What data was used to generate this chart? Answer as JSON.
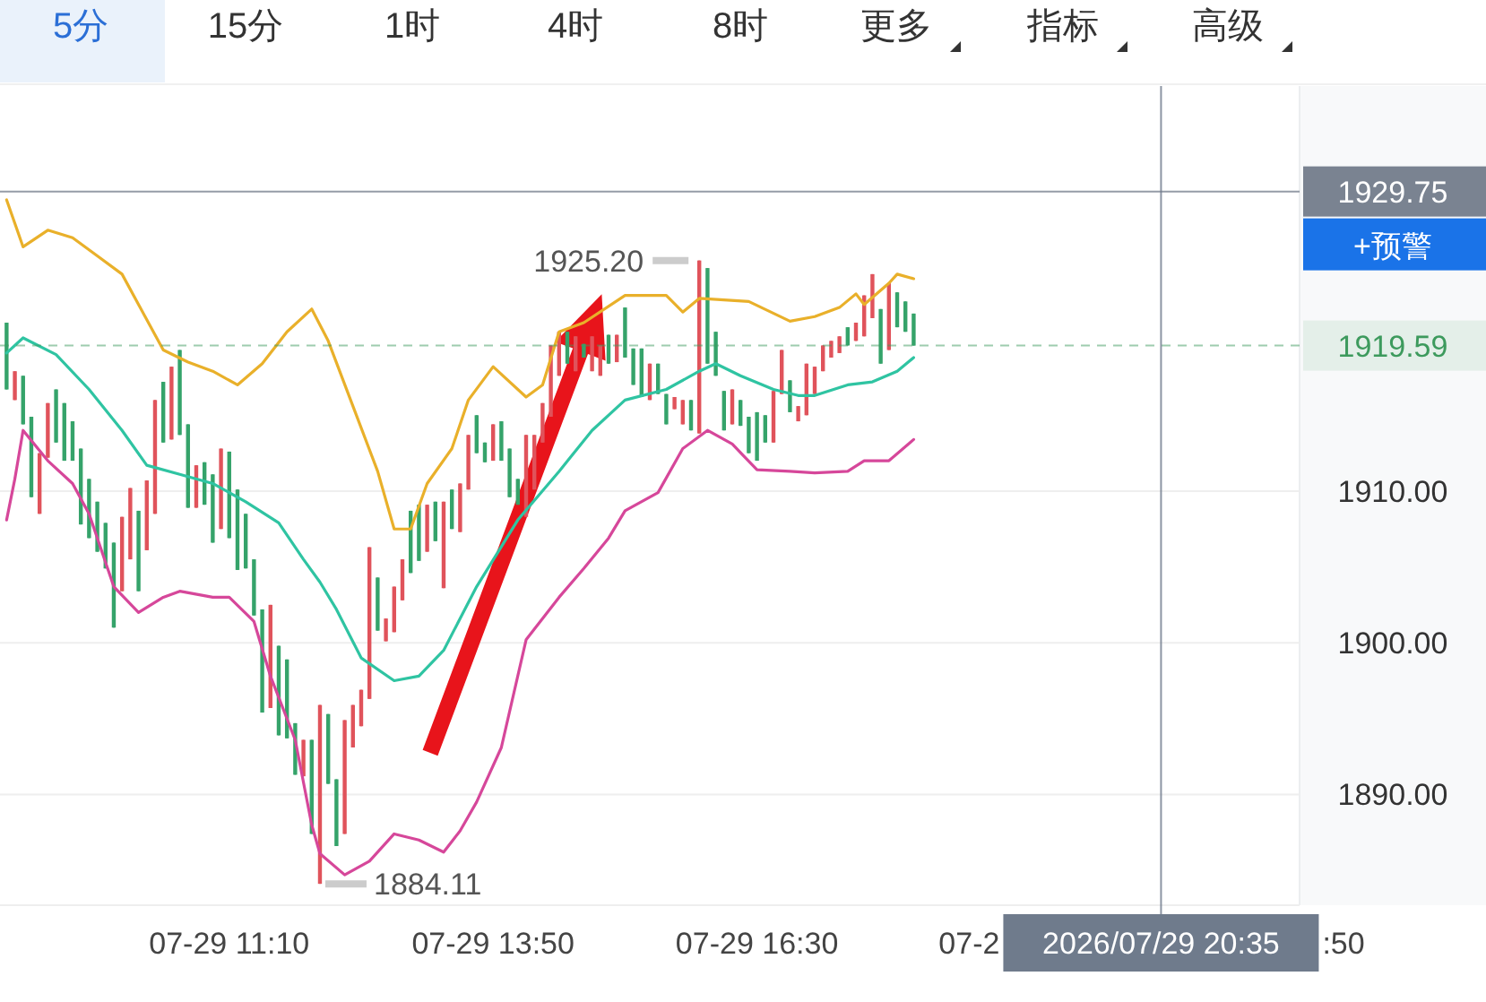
{
  "chart_data": {
    "type": "candlestick",
    "x": [
      "2026-07-29T08:55",
      "2026-07-29T09:00",
      "2026-07-29T09:05",
      "2026-07-29T09:10",
      "2026-07-29T09:15",
      "2026-07-29T09:20",
      "2026-07-29T09:25",
      "2026-07-29T09:30",
      "2026-07-29T09:35",
      "2026-07-29T09:40",
      "2026-07-29T09:45",
      "2026-07-29T09:50",
      "2026-07-29T09:55",
      "2026-07-29T10:00",
      "2026-07-29T10:05",
      "2026-07-29T10:10",
      "2026-07-29T10:15",
      "2026-07-29T10:20",
      "2026-07-29T10:25",
      "2026-07-29T10:30",
      "2026-07-29T10:35",
      "2026-07-29T10:40",
      "2026-07-29T10:45",
      "2026-07-29T10:50",
      "2026-07-29T10:55",
      "2026-07-29T11:00",
      "2026-07-29T11:05",
      "2026-07-29T11:10",
      "2026-07-29T11:15",
      "2026-07-29T11:20",
      "2026-07-29T11:25",
      "2026-07-29T11:30",
      "2026-07-29T11:35",
      "2026-07-29T11:40",
      "2026-07-29T11:45",
      "2026-07-29T11:50",
      "2026-07-29T11:55",
      "2026-07-29T12:00",
      "2026-07-29T12:05",
      "2026-07-29T12:10",
      "2026-07-29T12:15",
      "2026-07-29T12:20",
      "2026-07-29T12:25",
      "2026-07-29T12:30",
      "2026-07-29T12:35",
      "2026-07-29T12:40",
      "2026-07-29T12:45",
      "2026-07-29T12:50",
      "2026-07-29T12:55",
      "2026-07-29T13:00",
      "2026-07-29T13:05",
      "2026-07-29T13:10",
      "2026-07-29T13:15",
      "2026-07-29T13:20",
      "2026-07-29T13:25",
      "2026-07-29T13:30",
      "2026-07-29T13:35",
      "2026-07-29T13:40",
      "2026-07-29T13:45",
      "2026-07-29T13:50",
      "2026-07-29T13:55",
      "2026-07-29T14:00",
      "2026-07-29T14:05",
      "2026-07-29T14:10",
      "2026-07-29T14:15",
      "2026-07-29T14:20",
      "2026-07-29T14:25",
      "2026-07-29T14:30",
      "2026-07-29T14:35",
      "2026-07-29T14:40",
      "2026-07-29T14:45",
      "2026-07-29T14:50",
      "2026-07-29T14:55",
      "2026-07-29T15:00",
      "2026-07-29T15:05",
      "2026-07-29T15:10",
      "2026-07-29T15:15",
      "2026-07-29T15:20",
      "2026-07-29T15:25",
      "2026-07-29T15:30",
      "2026-07-29T15:35",
      "2026-07-29T15:40",
      "2026-07-29T15:45",
      "2026-07-29T15:50",
      "2026-07-29T15:55",
      "2026-07-29T16:00",
      "2026-07-29T16:05",
      "2026-07-29T16:10",
      "2026-07-29T16:15",
      "2026-07-29T16:20",
      "2026-07-29T16:25",
      "2026-07-29T16:30",
      "2026-07-29T16:35",
      "2026-07-29T16:40",
      "2026-07-29T16:45",
      "2026-07-29T16:50",
      "2026-07-29T16:55",
      "2026-07-29T17:00",
      "2026-07-29T17:05",
      "2026-07-29T17:10",
      "2026-07-29T17:15",
      "2026-07-29T17:20",
      "2026-07-29T17:25",
      "2026-07-29T17:30",
      "2026-07-29T17:35",
      "2026-07-29T17:40",
      "2026-07-29T17:45",
      "2026-07-29T17:50",
      "2026-07-29T17:55",
      "2026-07-29T18:00",
      "2026-07-29T18:05"
    ],
    "ohlc": [
      [
        1921.1,
        1921.1,
        1916.7,
        1916.7
      ],
      [
        1916.0,
        1917.9,
        1916.0,
        1917.9
      ],
      [
        1917.6,
        1917.6,
        1914.4,
        1914.4
      ],
      [
        1914.9,
        1914.9,
        1909.6,
        1909.6
      ],
      [
        1908.5,
        1912.5,
        1908.5,
        1912.5
      ],
      [
        1912.2,
        1915.8,
        1912.2,
        1915.8
      ],
      [
        1916.7,
        1916.7,
        1913.2,
        1913.2
      ],
      [
        1915.8,
        1915.8,
        1912.0,
        1912.0
      ],
      [
        1914.6,
        1914.6,
        1912.0,
        1912.0
      ],
      [
        1912.8,
        1912.8,
        1907.8,
        1907.8
      ],
      [
        1910.8,
        1910.8,
        1906.9,
        1906.9
      ],
      [
        1909.3,
        1909.3,
        1906.0,
        1906.0
      ],
      [
        1907.9,
        1907.9,
        1904.9,
        1904.9
      ],
      [
        1906.6,
        1906.6,
        1901.0,
        1901.0
      ],
      [
        1903.4,
        1908.3,
        1903.4,
        1908.3
      ],
      [
        1905.5,
        1910.2,
        1905.5,
        1910.2
      ],
      [
        1908.7,
        1908.7,
        1903.4,
        1903.4
      ],
      [
        1906.1,
        1910.7,
        1906.1,
        1910.7
      ],
      [
        1908.5,
        1916.0,
        1908.5,
        1916.0
      ],
      [
        1917.2,
        1917.2,
        1913.2,
        1913.2
      ],
      [
        1913.4,
        1918.2,
        1913.4,
        1918.2
      ],
      [
        1919.3,
        1919.3,
        1913.7,
        1913.7
      ],
      [
        1914.4,
        1914.4,
        1908.9,
        1908.9
      ],
      [
        1908.9,
        1911.7,
        1908.9,
        1911.7
      ],
      [
        1911.9,
        1911.9,
        1909.1,
        1909.1
      ],
      [
        1911.1,
        1911.1,
        1906.6,
        1906.6
      ],
      [
        1907.5,
        1912.8,
        1907.5,
        1912.8
      ],
      [
        1912.6,
        1912.6,
        1906.9,
        1906.9
      ],
      [
        1910.1,
        1910.1,
        1904.8,
        1904.8
      ],
      [
        1908.5,
        1908.5,
        1904.9,
        1904.9
      ],
      [
        1905.5,
        1905.5,
        1901.8,
        1901.8
      ],
      [
        1902.2,
        1902.2,
        1895.4,
        1895.4
      ],
      [
        1895.7,
        1902.5,
        1895.7,
        1902.5
      ],
      [
        1899.8,
        1899.8,
        1893.9,
        1893.9
      ],
      [
        1898.9,
        1898.9,
        1893.7,
        1893.7
      ],
      [
        1894.7,
        1894.7,
        1891.3,
        1891.3
      ],
      [
        1891.2,
        1893.6,
        1891.2,
        1893.6
      ],
      [
        1893.6,
        1893.6,
        1887.4,
        1887.4
      ],
      [
        1884.11,
        1895.9,
        1884.11,
        1895.9
      ],
      [
        1895.3,
        1895.3,
        1890.7,
        1890.7
      ],
      [
        1891.0,
        1891.0,
        1886.6,
        1886.6
      ],
      [
        1887.4,
        1894.9,
        1887.4,
        1894.9
      ],
      [
        1893.1,
        1895.9,
        1893.1,
        1895.9
      ],
      [
        1894.5,
        1896.9,
        1894.5,
        1896.9
      ],
      [
        1896.3,
        1906.3,
        1896.3,
        1906.3
      ],
      [
        1904.3,
        1904.3,
        1900.8,
        1900.8
      ],
      [
        1900.1,
        1901.6,
        1900.1,
        1901.6
      ],
      [
        1900.7,
        1903.7,
        1900.7,
        1903.7
      ],
      [
        1902.8,
        1905.5,
        1902.8,
        1905.5
      ],
      [
        1908.7,
        1908.7,
        1904.6,
        1904.6
      ],
      [
        1909.1,
        1909.1,
        1905.4,
        1905.4
      ],
      [
        1906.0,
        1909.1,
        1906.0,
        1909.1
      ],
      [
        1909.3,
        1909.3,
        1906.7,
        1906.7
      ],
      [
        1903.6,
        1909.3,
        1903.6,
        1909.3
      ],
      [
        1910.1,
        1910.1,
        1907.5,
        1907.5
      ],
      [
        1907.3,
        1910.5,
        1907.3,
        1910.5
      ],
      [
        1910.1,
        1913.7,
        1910.1,
        1913.7
      ],
      [
        1915.0,
        1915.0,
        1912.5,
        1912.5
      ],
      [
        1913.2,
        1913.2,
        1911.9,
        1911.9
      ],
      [
        1912.0,
        1914.4,
        1912.0,
        1914.4
      ],
      [
        1914.6,
        1914.6,
        1912.0,
        1912.0
      ],
      [
        1912.8,
        1912.8,
        1909.6,
        1909.6
      ],
      [
        1910.8,
        1910.8,
        1909.1,
        1909.1
      ],
      [
        1908.3,
        1913.7,
        1908.3,
        1913.7
      ],
      [
        1910.1,
        1913.7,
        1910.1,
        1913.7
      ],
      [
        1913.2,
        1915.8,
        1913.2,
        1915.8
      ],
      [
        1914.9,
        1919.6,
        1914.9,
        1919.6
      ],
      [
        1917.6,
        1920.5,
        1917.6,
        1920.5
      ],
      [
        1920.5,
        1920.5,
        1918.4,
        1918.4
      ],
      [
        1917.9,
        1920.2,
        1917.9,
        1920.2
      ],
      [
        1919.7,
        1919.7,
        1918.8,
        1918.8
      ],
      [
        1917.9,
        1920.2,
        1917.9,
        1920.2
      ],
      [
        1917.6,
        1919.6,
        1917.6,
        1919.6
      ],
      [
        1920.3,
        1920.3,
        1918.4,
        1918.4
      ],
      [
        1918.5,
        1920.3,
        1918.5,
        1920.3
      ],
      [
        1922.1,
        1922.1,
        1918.8,
        1918.8
      ],
      [
        1919.4,
        1919.4,
        1917.0,
        1917.0
      ],
      [
        1919.4,
        1919.4,
        1916.2,
        1916.2
      ],
      [
        1916.0,
        1918.4,
        1916.0,
        1918.4
      ],
      [
        1918.4,
        1918.4,
        1916.4,
        1916.4
      ],
      [
        1916.4,
        1916.4,
        1914.4,
        1914.4
      ],
      [
        1915.4,
        1916.2,
        1915.4,
        1916.2
      ],
      [
        1914.4,
        1916.0,
        1914.4,
        1916.0
      ],
      [
        1916.0,
        1916.0,
        1914.0,
        1914.0
      ],
      [
        1913.8,
        1925.2,
        1913.8,
        1925.2
      ],
      [
        1924.7,
        1924.7,
        1918.4,
        1918.4
      ],
      [
        1920.5,
        1920.5,
        1917.6,
        1917.6
      ],
      [
        1916.6,
        1916.6,
        1914.0,
        1914.0
      ],
      [
        1914.4,
        1916.7,
        1914.4,
        1916.7
      ],
      [
        1916.0,
        1916.0,
        1914.3,
        1914.3
      ],
      [
        1914.9,
        1914.9,
        1912.5,
        1912.5
      ],
      [
        1915.2,
        1915.2,
        1912.0,
        1912.0
      ],
      [
        1915.0,
        1915.0,
        1913.2,
        1913.2
      ],
      [
        1913.2,
        1916.6,
        1913.2,
        1916.6
      ],
      [
        1916.4,
        1919.3,
        1916.4,
        1919.3
      ],
      [
        1917.3,
        1917.3,
        1915.2,
        1915.2
      ],
      [
        1914.6,
        1915.6,
        1914.6,
        1915.6
      ],
      [
        1915.0,
        1918.4,
        1915.0,
        1918.4
      ],
      [
        1916.4,
        1918.2,
        1916.4,
        1918.2
      ],
      [
        1917.9,
        1919.6,
        1917.9,
        1919.6
      ],
      [
        1918.8,
        1919.9,
        1918.8,
        1919.9
      ],
      [
        1919.1,
        1920.2,
        1919.1,
        1920.2
      ],
      [
        1920.8,
        1920.8,
        1919.6,
        1919.6
      ],
      [
        1919.9,
        1921.1,
        1919.9,
        1921.1
      ],
      [
        1920.2,
        1922.9,
        1920.2,
        1922.9
      ],
      [
        1921.4,
        1924.3,
        1921.4,
        1924.3
      ],
      [
        1922.0,
        1922.0,
        1918.4,
        1918.4
      ],
      [
        1919.3,
        1923.7,
        1919.3,
        1923.7
      ],
      [
        1923.1,
        1923.1,
        1920.8,
        1920.8
      ],
      [
        1922.5,
        1922.5,
        1920.5,
        1920.5
      ],
      [
        1921.7,
        1921.7,
        1919.59,
        1919.59
      ]
    ],
    "series": [
      {
        "type": "line",
        "color": "#e9b02a",
        "x": [
          "2026-07-29T08:55",
          "2026-07-29T09:05",
          "2026-07-29T09:20",
          "2026-07-29T09:35",
          "2026-07-29T09:50",
          "2026-07-29T10:05",
          "2026-07-29T10:15",
          "2026-07-29T10:30",
          "2026-07-29T10:45",
          "2026-07-29T11:00",
          "2026-07-29T11:15",
          "2026-07-29T11:30",
          "2026-07-29T11:45",
          "2026-07-29T12:00",
          "2026-07-29T12:10",
          "2026-07-29T12:25",
          "2026-07-29T12:40",
          "2026-07-29T12:50",
          "2026-07-29T13:00",
          "2026-07-29T13:10",
          "2026-07-29T13:25",
          "2026-07-29T13:35",
          "2026-07-29T13:50",
          "2026-07-29T14:10",
          "2026-07-29T14:20",
          "2026-07-29T14:30",
          "2026-07-29T14:45",
          "2026-07-29T15:10",
          "2026-07-29T15:35",
          "2026-07-29T15:45",
          "2026-07-29T15:55",
          "2026-07-29T16:25",
          "2026-07-29T16:50",
          "2026-07-29T17:05",
          "2026-07-29T17:20",
          "2026-07-29T17:30",
          "2026-07-29T17:35",
          "2026-07-29T17:50",
          "2026-07-29T17:55",
          "2026-07-29T18:05"
        ],
        "values": [
          1929.2,
          1926.1,
          1927.2,
          1926.7,
          1925.5,
          1924.3,
          1922.3,
          1919.3,
          1918.5,
          1917.9,
          1917.0,
          1918.4,
          1920.5,
          1922.0,
          1919.9,
          1915.6,
          1911.3,
          1907.5,
          1907.5,
          1910.5,
          1912.8,
          1916.0,
          1918.2,
          1916.2,
          1917.0,
          1920.5,
          1921.1,
          1922.9,
          1922.9,
          1921.8,
          1922.7,
          1922.5,
          1921.2,
          1921.5,
          1922.1,
          1923.0,
          1922.3,
          1923.7,
          1924.3,
          1924.0
        ]
      },
      {
        "type": "line",
        "color": "#2fc4a2",
        "x": [
          "2026-07-29T08:55",
          "2026-07-29T09:05",
          "2026-07-29T09:25",
          "2026-07-29T09:45",
          "2026-07-29T10:05",
          "2026-07-29T10:20",
          "2026-07-29T10:40",
          "2026-07-29T11:00",
          "2026-07-29T11:20",
          "2026-07-29T11:40",
          "2026-07-29T11:55",
          "2026-07-29T12:05",
          "2026-07-29T12:15",
          "2026-07-29T12:30",
          "2026-07-29T12:50",
          "2026-07-29T13:05",
          "2026-07-29T13:20",
          "2026-07-29T13:40",
          "2026-07-29T14:05",
          "2026-07-29T14:30",
          "2026-07-29T14:50",
          "2026-07-29T15:10",
          "2026-07-29T15:35",
          "2026-07-29T15:55",
          "2026-07-29T16:05",
          "2026-07-29T16:20",
          "2026-07-29T16:40",
          "2026-07-29T16:55",
          "2026-07-29T17:05",
          "2026-07-29T17:25",
          "2026-07-29T17:40",
          "2026-07-29T17:55",
          "2026-07-29T18:05"
        ],
        "values": [
          1919.1,
          1920.1,
          1919.0,
          1916.7,
          1914.0,
          1911.7,
          1911.1,
          1910.5,
          1909.3,
          1907.9,
          1905.5,
          1904.0,
          1902.2,
          1899.0,
          1897.5,
          1897.8,
          1899.5,
          1903.7,
          1908.1,
          1911.3,
          1914.0,
          1916.0,
          1916.7,
          1917.9,
          1918.4,
          1917.6,
          1916.7,
          1916.3,
          1916.3,
          1917.0,
          1917.2,
          1917.9,
          1918.8
        ]
      },
      {
        "type": "line",
        "color": "#d6479a",
        "x": [
          "2026-07-29T08:55",
          "2026-07-29T09:00",
          "2026-07-29T09:05",
          "2026-07-29T09:20",
          "2026-07-29T09:35",
          "2026-07-29T09:45",
          "2026-07-29T10:00",
          "2026-07-29T10:15",
          "2026-07-29T10:30",
          "2026-07-29T10:40",
          "2026-07-29T11:00",
          "2026-07-29T11:10",
          "2026-07-29T11:25",
          "2026-07-29T11:35",
          "2026-07-29T11:50",
          "2026-07-29T12:00",
          "2026-07-29T12:05",
          "2026-07-29T12:20",
          "2026-07-29T12:35",
          "2026-07-29T12:50",
          "2026-07-29T13:05",
          "2026-07-29T13:20",
          "2026-07-29T13:30",
          "2026-07-29T13:40",
          "2026-07-29T13:55",
          "2026-07-29T14:10",
          "2026-07-29T14:30",
          "2026-07-29T14:45",
          "2026-07-29T15:00",
          "2026-07-29T15:10",
          "2026-07-29T15:30",
          "2026-07-29T15:45",
          "2026-07-29T16:00",
          "2026-07-29T16:15",
          "2026-07-29T16:30",
          "2026-07-29T16:50",
          "2026-07-29T17:05",
          "2026-07-29T17:25",
          "2026-07-29T17:35",
          "2026-07-29T17:50",
          "2026-07-29T18:05"
        ],
        "values": [
          1908.1,
          1910.8,
          1914.0,
          1912.0,
          1910.5,
          1908.5,
          1903.7,
          1902.0,
          1903.0,
          1903.4,
          1903.0,
          1903.0,
          1901.4,
          1897.8,
          1893.6,
          1888.0,
          1886.1,
          1884.7,
          1885.6,
          1887.4,
          1887.0,
          1886.2,
          1887.6,
          1889.5,
          1893.1,
          1900.2,
          1903.0,
          1904.9,
          1906.9,
          1908.7,
          1909.9,
          1912.8,
          1914.0,
          1913.1,
          1911.4,
          1911.3,
          1911.2,
          1911.3,
          1912.0,
          1912.0,
          1913.4
        ]
      }
    ],
    "xlim": [
      "2026-07-29T08:51",
      "2026-07-29T21:59"
    ],
    "xticks": [
      {
        "value": "2026-07-29T11:10",
        "label": "07-29 11:10"
      },
      {
        "value": "2026-07-29T13:50",
        "label": "07-29 13:50"
      },
      {
        "value": "2026-07-29T16:30",
        "label": "07-29 16:30"
      }
    ],
    "ylim": [
      1882.7,
      1936.7
    ],
    "yticks": [
      {
        "value": 1890,
        "label": "1890.00"
      },
      {
        "value": 1900,
        "label": "1900.00"
      },
      {
        "value": 1910,
        "label": "1910.00"
      }
    ],
    "grid": "y",
    "ref_lines": [
      {
        "axis": "y",
        "value": 1929.75,
        "label": "1929.75",
        "color": "#7a8391",
        "line_style": "solid"
      },
      {
        "axis": "y",
        "value": 1919.59,
        "label": "1919.59",
        "color": "#3d9a5d",
        "line_style": "dashed"
      },
      {
        "axis": "x",
        "value": "2026-07-29T20:35",
        "label": "2026/07/29 20:35",
        "color": "#6f7b8c",
        "line_style": "solid"
      }
    ],
    "annotations": [
      "5分",
      "15分",
      "1时",
      "4时",
      "8时",
      "更多",
      "指标",
      "高级",
      "+预警",
      "07-2",
      ":50",
      {
        "text": "1925.20",
        "x": "2026-07-29T15:55",
        "y": 1925.2
      },
      {
        "text": "1884.11",
        "x": "2026-07-29T12:05",
        "y": 1884.11
      }
    ]
  }
}
